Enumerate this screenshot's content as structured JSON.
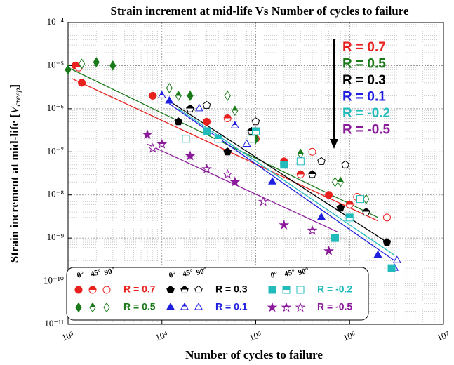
{
  "chart_data": {
    "type": "scatter",
    "title": "Strain increment at mid-life Vs Number of cycles to failure",
    "xlabel": "Number of cycles to failure",
    "ylabel": [
      "Strain increment at mid-life [",
      "V",
      "creep",
      "]"
    ],
    "xscale": "log",
    "yscale": "log",
    "xlim": [
      1000,
      10000000
    ],
    "ylim": [
      1e-11,
      0.0001
    ],
    "xticks": [
      {
        "value": 1000,
        "label": "10³"
      },
      {
        "value": 10000,
        "label": "10⁴"
      },
      {
        "value": 100000,
        "label": "10⁵"
      },
      {
        "value": 1000000,
        "label": "10⁶"
      },
      {
        "value": 10000000,
        "label": "10⁷"
      }
    ],
    "yticks": [
      {
        "value": 1e-11,
        "label": "10⁻¹¹"
      },
      {
        "value": 1e-10,
        "label": "10⁻¹⁰"
      },
      {
        "value": 1e-09,
        "label": "10⁻⁹"
      },
      {
        "value": 1e-08,
        "label": "10⁻⁸"
      },
      {
        "value": 1e-07,
        "label": "10⁻⁷"
      },
      {
        "value": 1e-06,
        "label": "10⁻⁶"
      },
      {
        "value": 1e-05,
        "label": "10⁻⁵"
      },
      {
        "value": 0.0001,
        "label": "10⁻⁴"
      }
    ],
    "grid": true,
    "minor_grid": true,
    "legend": "lower left",
    "orientations": [
      "0°",
      "45°",
      "90°"
    ],
    "series": [
      {
        "name": "R = 0.7",
        "color": "#e8211f",
        "marker": "circle",
        "groups": [
          {
            "fill": "full",
            "x": [
              1200,
              1400,
              8000,
              30000,
              200000,
              600000
            ],
            "y": [
              1e-05,
              4e-06,
              2e-06,
              5e-07,
              6e-08,
              1e-08
            ]
          },
          {
            "fill": "half",
            "x": [
              1300,
              50000,
              300000,
              1000000
            ],
            "y": [
              9e-06,
              6e-07,
              3e-08,
              6e-09
            ]
          },
          {
            "fill": "open",
            "x": [
              100000,
              400000,
              1200000,
              2500000
            ],
            "y": [
              2e-07,
              1e-07,
              9e-09,
              3e-09
            ]
          }
        ],
        "fit": {
          "x": [
            1100,
            2000000
          ],
          "y": [
            5e-06,
            2.5e-09
          ]
        }
      },
      {
        "name": "R = 0.5",
        "color": "#1a7a1a",
        "marker": "diamond",
        "groups": [
          {
            "fill": "full",
            "x": [
              1000,
              2000,
              3000,
              20000,
              100000
            ],
            "y": [
              8e-06,
              1.2e-05,
              1e-05,
              2e-06,
              2e-07
            ]
          },
          {
            "fill": "half",
            "x": [
              15000,
              60000,
              300000,
              800000
            ],
            "y": [
              2e-06,
              9e-07,
              9e-08,
              2e-08
            ]
          },
          {
            "fill": "open",
            "x": [
              1400,
              12000,
              50000,
              700000,
              1500000
            ],
            "y": [
              1.1e-05,
              3e-06,
              2e-06,
              2e-08,
              8e-09
            ]
          }
        ],
        "fit": {
          "x": [
            1000,
            2000000
          ],
          "y": [
            9e-06,
            3e-09
          ]
        }
      },
      {
        "name": "R = 0.3",
        "color": "#000000",
        "marker": "pentagon",
        "groups": [
          {
            "fill": "full",
            "x": [
              15000,
              50000,
              200000,
              800000,
              2500000
            ],
            "y": [
              5e-07,
              1e-07,
              5e-08,
              5e-09,
              8e-10
            ]
          },
          {
            "fill": "half",
            "x": [
              20000,
              90000,
              400000,
              1500000
            ],
            "y": [
              1e-06,
              3e-07,
              3e-08,
              4e-09
            ]
          },
          {
            "fill": "open",
            "x": [
              30000,
              100000,
              500000,
              900000
            ],
            "y": [
              1.2e-06,
              5e-07,
              6e-08,
              5e-08
            ]
          }
        ],
        "fit": {
          "x": [
            12000,
            2500000
          ],
          "y": [
            1.5e-06,
            8e-10
          ]
        }
      },
      {
        "name": "R = 0.1",
        "color": "#1f1fe0",
        "marker": "triangle",
        "groups": [
          {
            "fill": "full",
            "x": [
              12000,
              40000,
              150000,
              500000,
              2000000
            ],
            "y": [
              1.5e-06,
              2e-07,
              2e-08,
              3e-09,
              4e-10
            ]
          },
          {
            "fill": "half",
            "x": [
              10000,
              60000,
              300000,
              3000000
            ],
            "y": [
              2e-06,
              4e-07,
              6e-08,
              2e-10
            ]
          },
          {
            "fill": "open",
            "x": [
              25000,
              80000,
              3200000
            ],
            "y": [
              1e-06,
              1.5e-07,
              3e-10
            ]
          }
        ],
        "fit": {
          "x": [
            12000,
            3000000
          ],
          "y": [
            1.3e-06,
            3e-10
          ]
        }
      },
      {
        "name": "R = -0.2",
        "color": "#22bbbb",
        "marker": "square",
        "groups": [
          {
            "fill": "full",
            "x": [
              30000,
              200000,
              700000,
              2800000
            ],
            "y": [
              3e-07,
              5e-08,
              1e-09,
              2e-10
            ]
          },
          {
            "fill": "half",
            "x": [
              40000,
              100000,
              1000000
            ],
            "y": [
              2e-07,
              3e-07,
              3e-09
            ]
          },
          {
            "fill": "open",
            "x": [
              18000,
              90000,
              300000,
              1300000
            ],
            "y": [
              2e-07,
              2e-07,
              6e-08,
              8e-09
            ]
          }
        ],
        "fit": {
          "x": [
            15000,
            3000000
          ],
          "y": [
            1e-06,
            4e-10
          ]
        }
      },
      {
        "name": "R = -0.5",
        "color": "#8a1a9a",
        "marker": "star",
        "groups": [
          {
            "fill": "full",
            "x": [
              7000,
              20000,
              60000,
              200000,
              600000
            ],
            "y": [
              2.5e-07,
              8e-08,
              2e-08,
              2e-09,
              5e-10
            ]
          },
          {
            "fill": "half",
            "x": [
              10000,
              30000,
              400000
            ],
            "y": [
              1.5e-07,
              4e-08,
              1.5e-09
            ]
          },
          {
            "fill": "open",
            "x": [
              8000,
              50000,
              120000
            ],
            "y": [
              1.2e-07,
              3e-08,
              7e-09
            ]
          }
        ],
        "fit": {
          "x": [
            7000,
            740000
          ],
          "y": [
            1.5e-07,
            1.4e-09
          ]
        }
      }
    ]
  }
}
